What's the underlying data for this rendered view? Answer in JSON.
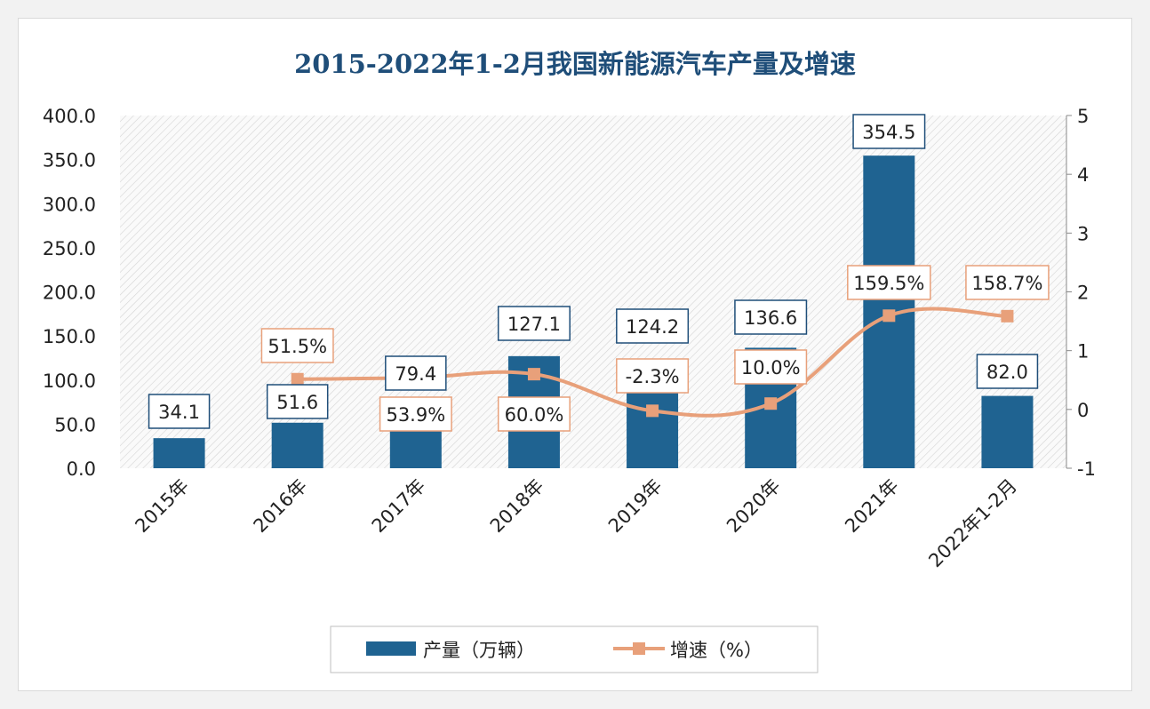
{
  "chart_data": {
    "type": "bar+line",
    "title": "2015-2022年1-2月我国新能源汽车产量及增速",
    "categories": [
      "2015年",
      "2016年",
      "2017年",
      "2018年",
      "2019年",
      "2020年",
      "2021年",
      "2022年1-2月"
    ],
    "series": [
      {
        "name": "产量（万辆）",
        "type": "bar",
        "axis": "left",
        "color": "#1f6391",
        "values": [
          34.1,
          51.6,
          79.4,
          127.1,
          124.2,
          136.6,
          354.5,
          82.0
        ],
        "labels": [
          "34.1",
          "51.6",
          "79.4",
          "127.1",
          "124.2",
          "136.6",
          "354.5",
          "82.0"
        ]
      },
      {
        "name": "增速（%）",
        "type": "line",
        "axis": "right",
        "color": "#e8a07a",
        "values": [
          null,
          0.515,
          0.539,
          0.6,
          -0.023,
          0.1,
          1.595,
          1.587
        ],
        "labels": [
          null,
          "51.5%",
          "53.9%",
          "60.0%",
          "-2.3%",
          "10.0%",
          "159.5%",
          "158.7%"
        ]
      }
    ],
    "y_left": {
      "range": [
        0,
        400
      ],
      "ticks": [
        "0.0",
        "50.0",
        "100.0",
        "150.0",
        "200.0",
        "250.0",
        "300.0",
        "350.0",
        "400.0"
      ]
    },
    "y_right": {
      "range": [
        -1,
        5
      ],
      "ticks": [
        "-1",
        "0",
        "1",
        "2",
        "3",
        "4",
        "5"
      ]
    },
    "legend": "bottom"
  }
}
